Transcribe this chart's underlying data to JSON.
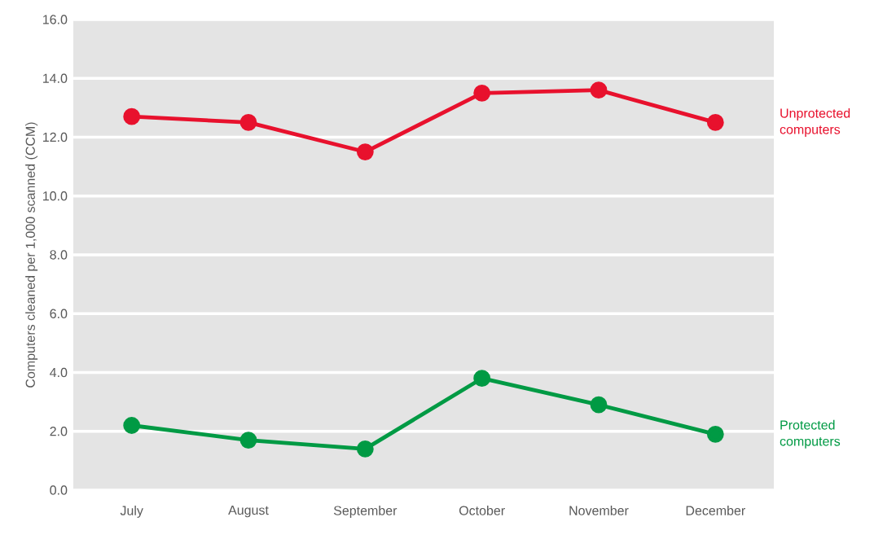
{
  "chart_data": {
    "type": "line",
    "ylabel": "Computers cleaned per 1,000 scanned (CCM)",
    "categories": [
      "July",
      "August",
      "September",
      "October",
      "November",
      "December"
    ],
    "series": [
      {
        "name": "Unprotected computers",
        "color": "#e8112d",
        "values": [
          12.7,
          12.5,
          11.5,
          13.5,
          13.6,
          12.5
        ]
      },
      {
        "name": "Protected computers",
        "color": "#009a44",
        "values": [
          2.2,
          1.7,
          1.4,
          3.8,
          2.9,
          1.9
        ]
      }
    ],
    "ylim": [
      0,
      16
    ],
    "yticks": [
      {
        "value": 0,
        "label": "0.0"
      },
      {
        "value": 2,
        "label": "2.0"
      },
      {
        "value": 4,
        "label": "4.0"
      },
      {
        "value": 6,
        "label": "6.0"
      },
      {
        "value": 8,
        "label": "8.0"
      },
      {
        "value": 10,
        "label": "10.0"
      },
      {
        "value": 12,
        "label": "12.0"
      },
      {
        "value": 14,
        "label": "14.0"
      },
      {
        "value": 16,
        "label": "16.0"
      }
    ],
    "grid": "y",
    "marker": "circle",
    "line_style": "solid"
  }
}
